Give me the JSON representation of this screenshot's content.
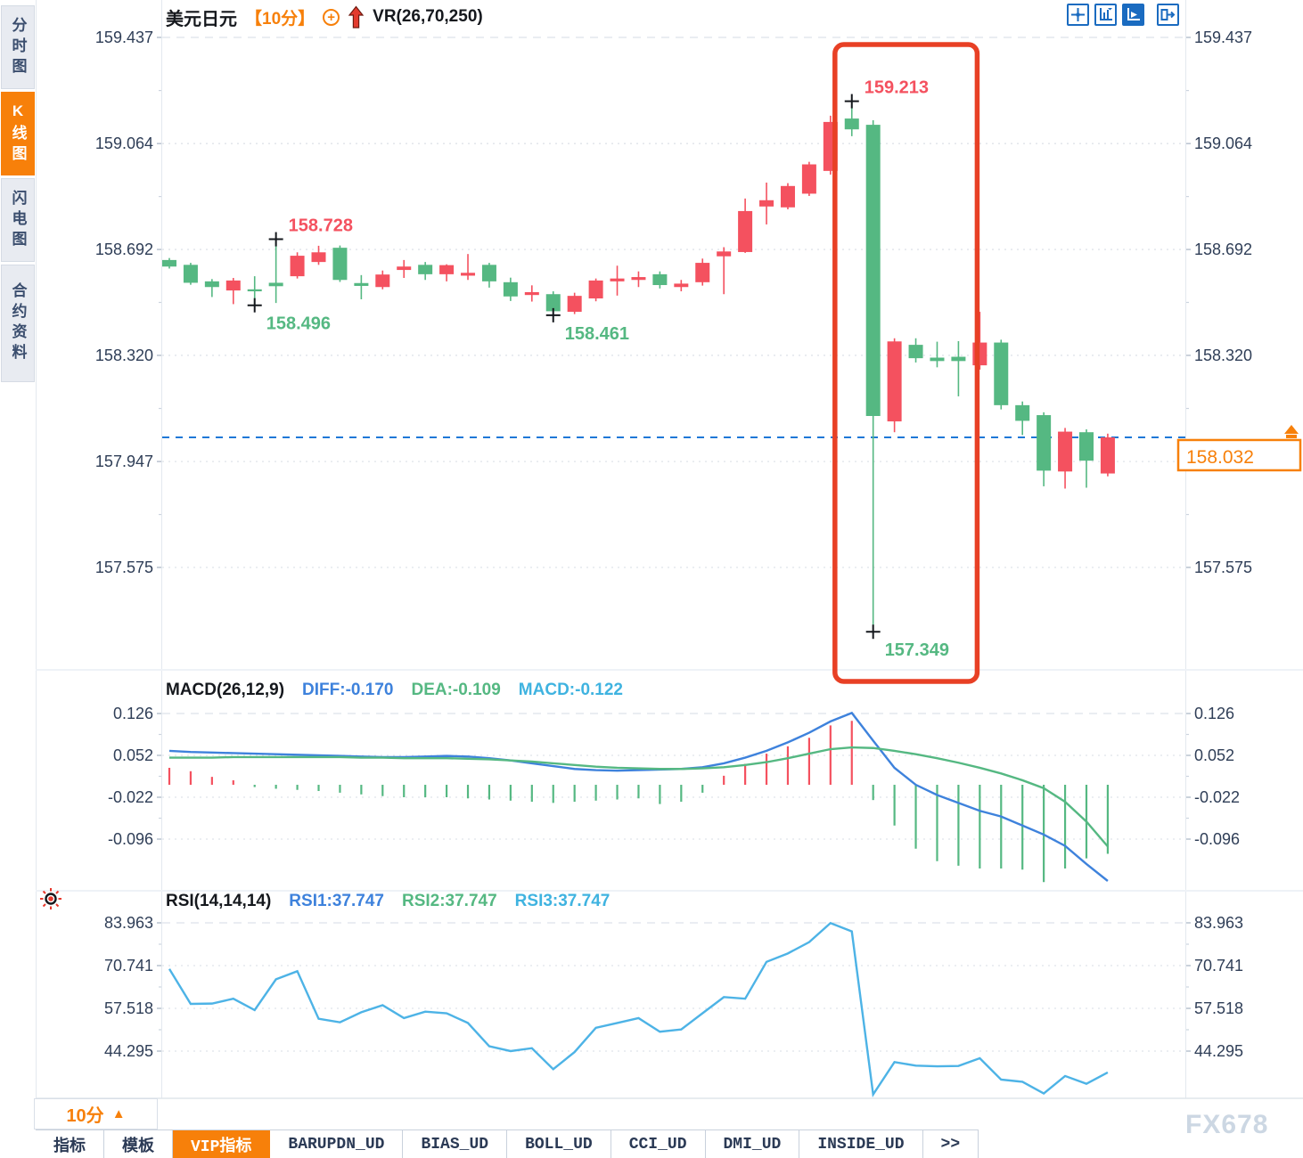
{
  "sidebar": {
    "items": [
      {
        "label": "分时图",
        "active": false
      },
      {
        "label": "K线图",
        "active": true
      },
      {
        "label": "闪电图",
        "active": false
      },
      {
        "label": "合约资料",
        "active": false
      }
    ]
  },
  "header": {
    "symbol": "美元日元",
    "interval": "【10分】",
    "plus_icon": "+",
    "indicator": "VR(26,70,250)"
  },
  "toolbar_icons": [
    "crosshair-move",
    "axis-zoom",
    "axis-play",
    "exit-right"
  ],
  "footer": {
    "interval_label": "10分",
    "interval_arrow": "▲",
    "tabs": [
      {
        "label": "指标",
        "active": false
      },
      {
        "label": "模板",
        "active": false
      },
      {
        "label": "VIP指标",
        "active": true
      },
      {
        "label": "BARUPDN_UD",
        "active": false
      },
      {
        "label": "BIAS_UD",
        "active": false
      },
      {
        "label": "BOLL_UD",
        "active": false
      },
      {
        "label": "CCI_UD",
        "active": false
      },
      {
        "label": "DMI_UD",
        "active": false
      },
      {
        "label": "INSIDE_UD",
        "active": false
      },
      {
        "label": ">>",
        "active": false
      }
    ],
    "watermark": "FX678"
  },
  "colors": {
    "up": "#f4515f",
    "down": "#55b882",
    "diff_line": "#3e82dc",
    "dea_line": "#55b882",
    "rsi_line": "#4db3e6",
    "accent_orange": "#f7800a",
    "box_red": "#e84025",
    "price_line_blue": "#1e78d7",
    "axis_text": "#2f3e57",
    "grid_dot": "#dfe3ea",
    "grid_dash": "#dde2e9"
  },
  "chart_data": [
    {
      "type": "candlestick",
      "title": "美元日元 10分",
      "y_ticks": [
        159.437,
        159.064,
        158.692,
        158.32,
        157.947,
        157.575
      ],
      "last_price": 158.032,
      "last_price_label": "158.032",
      "candles": [
        [
          158.655,
          158.662,
          158.625,
          158.632
        ],
        [
          158.638,
          158.645,
          158.568,
          158.575
        ],
        [
          158.58,
          158.588,
          158.525,
          158.56
        ],
        [
          158.548,
          158.592,
          158.5,
          158.583
        ],
        [
          158.552,
          158.598,
          158.496,
          158.545
        ],
        [
          158.575,
          158.728,
          158.504,
          158.563
        ],
        [
          158.598,
          158.682,
          158.59,
          158.67
        ],
        [
          158.648,
          158.705,
          158.638,
          158.682
        ],
        [
          158.698,
          158.706,
          158.578,
          158.585
        ],
        [
          158.574,
          158.602,
          158.517,
          158.564
        ],
        [
          158.56,
          158.618,
          158.552,
          158.604
        ],
        [
          158.62,
          158.655,
          158.592,
          158.632
        ],
        [
          158.638,
          158.648,
          158.585,
          158.605
        ],
        [
          158.605,
          158.64,
          158.58,
          158.637
        ],
        [
          158.6,
          158.676,
          158.585,
          158.61
        ],
        [
          158.638,
          158.645,
          158.558,
          158.58
        ],
        [
          158.577,
          158.593,
          158.511,
          158.527
        ],
        [
          158.532,
          158.566,
          158.509,
          158.542
        ],
        [
          158.535,
          158.545,
          158.461,
          158.475
        ],
        [
          158.473,
          158.54,
          158.465,
          158.529
        ],
        [
          158.52,
          158.59,
          158.51,
          158.583
        ],
        [
          158.58,
          158.635,
          158.53,
          158.59
        ],
        [
          158.585,
          158.615,
          158.56,
          158.595
        ],
        [
          158.605,
          158.615,
          158.555,
          158.567
        ],
        [
          158.56,
          158.585,
          158.545,
          158.572
        ],
        [
          158.577,
          158.66,
          158.565,
          158.645
        ],
        [
          158.668,
          158.7,
          158.535,
          158.685
        ],
        [
          158.683,
          158.871,
          158.68,
          158.827
        ],
        [
          158.843,
          158.927,
          158.78,
          158.865
        ],
        [
          158.84,
          158.925,
          158.833,
          158.915
        ],
        [
          158.888,
          159.0,
          158.88,
          158.991
        ],
        [
          158.968,
          159.162,
          158.955,
          159.14
        ],
        [
          159.152,
          159.213,
          159.09,
          159.114
        ],
        [
          159.13,
          159.146,
          157.349,
          158.107
        ],
        [
          158.088,
          158.38,
          158.05,
          158.369
        ],
        [
          158.357,
          158.38,
          158.295,
          158.31
        ],
        [
          158.312,
          158.368,
          158.278,
          158.3
        ],
        [
          158.315,
          158.37,
          158.176,
          158.3
        ],
        [
          158.285,
          158.473,
          158.27,
          158.365
        ],
        [
          158.365,
          158.375,
          158.13,
          158.145
        ],
        [
          158.145,
          158.158,
          158.04,
          158.09
        ],
        [
          158.11,
          158.12,
          157.86,
          157.915
        ],
        [
          157.912,
          158.065,
          157.852,
          158.052
        ],
        [
          158.05,
          158.06,
          157.855,
          157.95
        ],
        [
          157.905,
          158.045,
          157.895,
          158.032
        ]
      ],
      "annotations": [
        {
          "text": "158.728",
          "value": 158.728,
          "index": 5,
          "kind": "high"
        },
        {
          "text": "158.496",
          "value": 158.496,
          "index": 4,
          "kind": "low"
        },
        {
          "text": "158.461",
          "value": 158.461,
          "index": 18,
          "kind": "low"
        },
        {
          "text": "159.213",
          "value": 159.213,
          "index": 32,
          "kind": "high"
        },
        {
          "text": "157.349",
          "value": 157.349,
          "index": 33,
          "kind": "low"
        }
      ],
      "highlight_box": {
        "start_index": 31,
        "end_index": 37
      }
    },
    {
      "type": "line+histogram",
      "label": "MACD(26,12,9)",
      "legend": [
        {
          "label": "DIFF:-0.170"
        },
        {
          "label": "DEA:-0.109"
        },
        {
          "label": "MACD:-0.122"
        }
      ],
      "y_ticks": [
        0.126,
        0.052,
        -0.022,
        -0.096
      ],
      "diff": [
        0.06,
        0.058,
        0.057,
        0.056,
        0.055,
        0.054,
        0.053,
        0.052,
        0.051,
        0.05,
        0.049,
        0.049,
        0.05,
        0.051,
        0.05,
        0.047,
        0.043,
        0.038,
        0.033,
        0.028,
        0.026,
        0.025,
        0.026,
        0.027,
        0.028,
        0.031,
        0.038,
        0.048,
        0.06,
        0.075,
        0.092,
        0.112,
        0.127,
        0.078,
        0.03,
        0.0,
        -0.018,
        -0.032,
        -0.046,
        -0.056,
        -0.072,
        -0.088,
        -0.108,
        -0.14,
        -0.17
      ],
      "dea": [
        0.048,
        0.048,
        0.048,
        0.049,
        0.049,
        0.049,
        0.049,
        0.049,
        0.049,
        0.048,
        0.048,
        0.047,
        0.047,
        0.047,
        0.046,
        0.045,
        0.043,
        0.041,
        0.038,
        0.035,
        0.032,
        0.03,
        0.029,
        0.028,
        0.028,
        0.029,
        0.031,
        0.035,
        0.04,
        0.047,
        0.055,
        0.063,
        0.066,
        0.065,
        0.06,
        0.054,
        0.047,
        0.039,
        0.03,
        0.02,
        0.008,
        -0.006,
        -0.03,
        -0.065,
        -0.109
      ],
      "hist": [
        0.03,
        0.024,
        0.014,
        0.008,
        -0.004,
        -0.007,
        -0.009,
        -0.011,
        -0.014,
        -0.017,
        -0.02,
        -0.022,
        -0.022,
        -0.022,
        -0.024,
        -0.026,
        -0.028,
        -0.03,
        -0.032,
        -0.03,
        -0.028,
        -0.026,
        -0.024,
        -0.034,
        -0.03,
        -0.014,
        0.016,
        0.037,
        0.055,
        0.068,
        0.083,
        0.105,
        0.113,
        -0.027,
        -0.072,
        -0.113,
        -0.135,
        -0.143,
        -0.148,
        -0.148,
        -0.15,
        -0.172,
        -0.148,
        -0.13,
        -0.122
      ]
    },
    {
      "type": "line",
      "label": "RSI(14,14,14)",
      "legend": [
        {
          "label": "RSI1:37.747"
        },
        {
          "label": "RSI2:37.747"
        },
        {
          "label": "RSI3:37.747"
        }
      ],
      "y_ticks": [
        83.963,
        70.741,
        57.518,
        44.295
      ],
      "rsi": [
        69.7,
        58.9,
        59.0,
        60.5,
        57.0,
        66.5,
        69.0,
        54.3,
        53.2,
        56.3,
        58.5,
        54.5,
        56.5,
        56.0,
        53.0,
        45.8,
        44.3,
        45.2,
        38.7,
        44.0,
        51.5,
        53.0,
        54.5,
        50.3,
        51.0,
        56.0,
        61.0,
        60.5,
        71.9,
        74.5,
        78.0,
        83.9,
        81.3,
        30.9,
        40.9,
        39.8,
        39.6,
        39.7,
        42.1,
        35.5,
        34.8,
        31.2,
        36.6,
        34.2,
        37.7
      ]
    }
  ]
}
